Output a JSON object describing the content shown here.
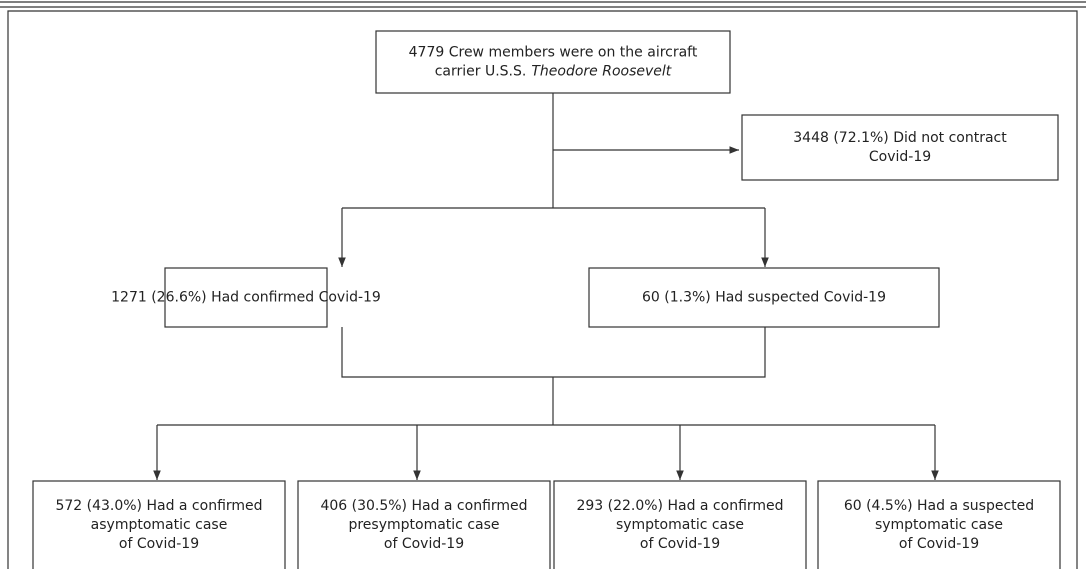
{
  "nodes": [
    {
      "lines": [
        "4779 Crew members were on the aircraft",
        "carrier U.S.S."
      ],
      "italic": "Theodore Roosevelt"
    },
    {
      "lines": [
        "3448 (72.1%) Did not contract",
        "Covid-19"
      ]
    },
    {
      "lines": [
        "1271 (26.6%) Had confirmed Covid-19"
      ]
    },
    {
      "lines": [
        "60 (1.3%) Had suspected Covid-19"
      ]
    },
    {
      "lines": [
        "572 (43.0%) Had a confirmed",
        "asymptomatic case",
        "of Covid-19"
      ]
    },
    {
      "lines": [
        "406 (30.5%) Had a confirmed",
        "presymptomatic case",
        "of Covid-19"
      ]
    },
    {
      "lines": [
        "293 (22.0%) Had a confirmed",
        "symptomatic case",
        "of Covid-19"
      ]
    },
    {
      "lines": [
        "60 (4.5%) Had a suspected",
        "symptomatic case",
        "of Covid-19"
      ]
    }
  ]
}
